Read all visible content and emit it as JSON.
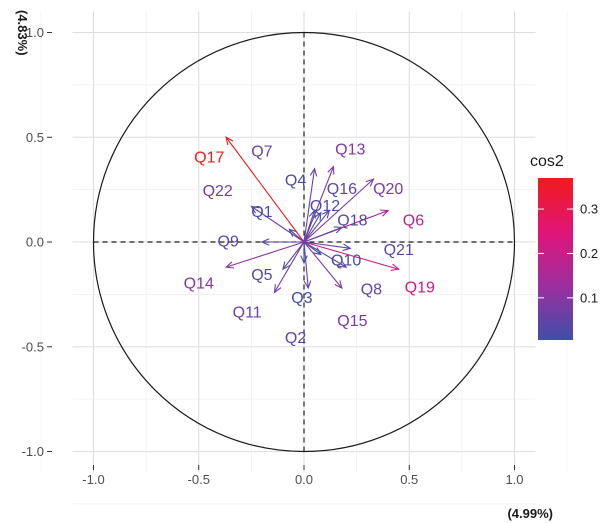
{
  "chart_data": {
    "type": "scatter",
    "subtype": "pca-correlation-circle",
    "title": "",
    "xlabel": "(4.99%)",
    "ylabel": "(4.83%)",
    "xlim": [
      -1.1,
      1.1
    ],
    "ylim": [
      -1.1,
      1.1
    ],
    "x_ticks": [
      -1.0,
      -0.5,
      0.0,
      0.5,
      1.0
    ],
    "x_tick_labels": [
      "-1.0",
      "-0.5",
      "0.0",
      "0.5",
      "1.0"
    ],
    "y_ticks": [
      -1.0,
      -0.5,
      0.0,
      0.5,
      1.0
    ],
    "y_tick_labels": [
      "-1.0",
      "-0.5",
      "0.0",
      "0.5",
      "1.0"
    ],
    "grid": true,
    "unit_circle": true,
    "legend": {
      "title": "cos2",
      "placement": "right",
      "ticks": [
        0.1,
        0.2,
        0.3
      ],
      "tick_labels": [
        "0.1",
        "0.2",
        "0.3"
      ],
      "range": [
        0.005,
        0.37
      ],
      "colors": [
        "#3f4fa8",
        "#9c2fa0",
        "#e0157a",
        "#f21a1a"
      ]
    },
    "variables": [
      {
        "name": "Q1",
        "x": -0.07,
        "y": 0.06,
        "label_x": -0.2,
        "label_y": 0.14,
        "cos2": 0.008
      },
      {
        "name": "Q2",
        "x": 0.02,
        "y": -0.22,
        "label_x": -0.04,
        "label_y": -0.46,
        "cos2": 0.05
      },
      {
        "name": "Q3",
        "x": 0.0,
        "y": -0.1,
        "label_x": -0.01,
        "label_y": -0.27,
        "cos2": 0.01
      },
      {
        "name": "Q4",
        "x": 0.05,
        "y": 0.15,
        "label_x": -0.04,
        "label_y": 0.29,
        "cos2": 0.025
      },
      {
        "name": "Q5",
        "x": -0.1,
        "y": -0.13,
        "label_x": -0.2,
        "label_y": -0.16,
        "cos2": 0.03
      },
      {
        "name": "Q6",
        "x": 0.4,
        "y": 0.15,
        "label_x": 0.52,
        "label_y": 0.1,
        "cos2": 0.17
      },
      {
        "name": "Q7",
        "x": 0.05,
        "y": 0.35,
        "label_x": -0.2,
        "label_y": 0.43,
        "cos2": 0.06
      },
      {
        "name": "Q8",
        "x": 0.2,
        "y": -0.12,
        "label_x": 0.32,
        "label_y": -0.23,
        "cos2": 0.05
      },
      {
        "name": "Q9",
        "x": -0.2,
        "y": 0.0,
        "label_x": -0.36,
        "label_y": 0.0,
        "cos2": 0.04
      },
      {
        "name": "Q10",
        "x": 0.08,
        "y": -0.06,
        "label_x": 0.2,
        "label_y": -0.09,
        "cos2": 0.01
      },
      {
        "name": "Q11",
        "x": -0.14,
        "y": -0.24,
        "label_x": -0.27,
        "label_y": -0.34,
        "cos2": 0.07
      },
      {
        "name": "Q12",
        "x": 0.08,
        "y": 0.14,
        "label_x": 0.1,
        "label_y": 0.17,
        "cos2": 0.02
      },
      {
        "name": "Q13",
        "x": 0.14,
        "y": 0.36,
        "label_x": 0.22,
        "label_y": 0.44,
        "cos2": 0.09
      },
      {
        "name": "Q14",
        "x": -0.37,
        "y": -0.12,
        "label_x": -0.5,
        "label_y": -0.2,
        "cos2": 0.1
      },
      {
        "name": "Q15",
        "x": 0.18,
        "y": -0.22,
        "label_x": 0.23,
        "label_y": -0.38,
        "cos2": 0.09
      },
      {
        "name": "Q16",
        "x": 0.12,
        "y": 0.15,
        "label_x": 0.18,
        "label_y": 0.25,
        "cos2": 0.04
      },
      {
        "name": "Q17",
        "x": -0.37,
        "y": 0.5,
        "label_x": -0.45,
        "label_y": 0.4,
        "cos2": 0.37
      },
      {
        "name": "Q18",
        "x": 0.18,
        "y": 0.07,
        "label_x": 0.23,
        "label_y": 0.1,
        "cos2": 0.03
      },
      {
        "name": "Q19",
        "x": 0.45,
        "y": -0.13,
        "label_x": 0.55,
        "label_y": -0.22,
        "cos2": 0.22
      },
      {
        "name": "Q20",
        "x": 0.33,
        "y": 0.3,
        "label_x": 0.4,
        "label_y": 0.25,
        "cos2": 0.09
      },
      {
        "name": "Q21",
        "x": 0.22,
        "y": -0.03,
        "label_x": 0.45,
        "label_y": -0.04,
        "cos2": 0.04
      },
      {
        "name": "Q22",
        "x": -0.25,
        "y": 0.17,
        "label_x": -0.41,
        "label_y": 0.24,
        "cos2": 0.07
      }
    ]
  }
}
